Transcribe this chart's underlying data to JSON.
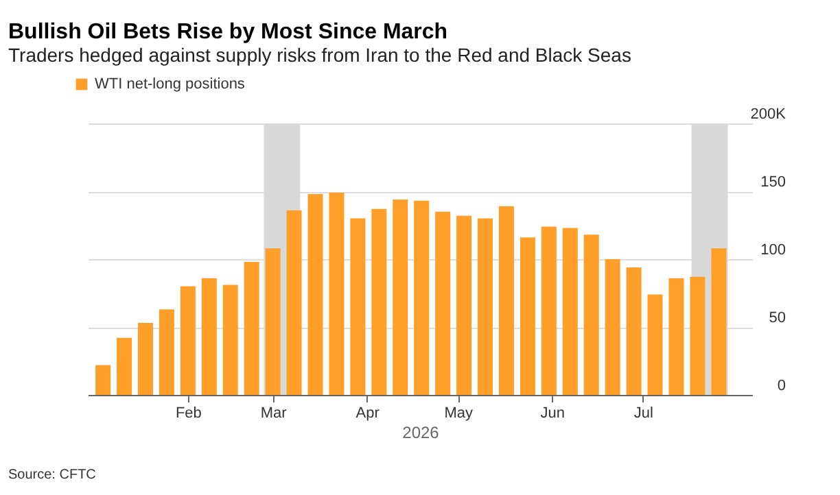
{
  "chart_data": {
    "type": "bar",
    "title": "Bullish Oil Bets Rise by Most Since March",
    "subtitle": "Traders hedged against supply risks from Iran to the Red and Black Seas",
    "xlabel": "2026",
    "x": [
      "2026-01-04",
      "2026-01-11",
      "2026-01-18",
      "2026-01-25",
      "2026-02-01",
      "2026-02-08",
      "2026-02-15",
      "2026-02-22",
      "2026-03-01",
      "2026-03-08",
      "2026-03-15",
      "2026-03-22",
      "2026-03-29",
      "2026-04-05",
      "2026-04-12",
      "2026-04-19",
      "2026-04-26",
      "2026-05-03",
      "2026-05-10",
      "2026-05-17",
      "2026-05-24",
      "2026-05-31",
      "2026-06-07",
      "2026-06-14",
      "2026-06-21",
      "2026-06-28",
      "2026-07-05",
      "2026-07-12",
      "2026-07-19",
      "2026-07-26"
    ],
    "series": [
      {
        "name": "WTI net-long positions",
        "color": "#ff9f2a",
        "values": [
          22,
          42,
          53,
          63,
          80,
          86,
          81,
          98,
          108,
          136,
          148,
          149,
          130,
          137,
          144,
          143,
          135,
          132,
          130,
          139,
          116,
          124,
          123,
          118,
          100,
          94,
          74,
          86,
          87,
          108
        ]
      }
    ],
    "xlim": [
      "2025-12-30",
      "2026-08-06"
    ],
    "xticks": [
      {
        "value": "2026-02-01",
        "label": "Feb"
      },
      {
        "value": "2026-03-01",
        "label": "Mar"
      },
      {
        "value": "2026-04-01",
        "label": "Apr"
      },
      {
        "value": "2026-05-01",
        "label": "May"
      },
      {
        "value": "2026-06-01",
        "label": "Jun"
      },
      {
        "value": "2026-07-01",
        "label": "Jul"
      }
    ],
    "ylim": [
      0,
      200
    ],
    "yticks": [
      0,
      50,
      100,
      150,
      {
        "value": 200,
        "label": "200K"
      }
    ],
    "bands": [
      {
        "axis": "x",
        "from": "2026-02-26",
        "to": "2026-03-10",
        "color": "#d9d9d9"
      },
      {
        "axis": "x",
        "from": "2026-07-17",
        "to": "2026-07-29",
        "color": "#d9d9d9"
      }
    ],
    "grid": "y",
    "legend": "top left",
    "annotations": [
      "Source: CFTC"
    ]
  }
}
